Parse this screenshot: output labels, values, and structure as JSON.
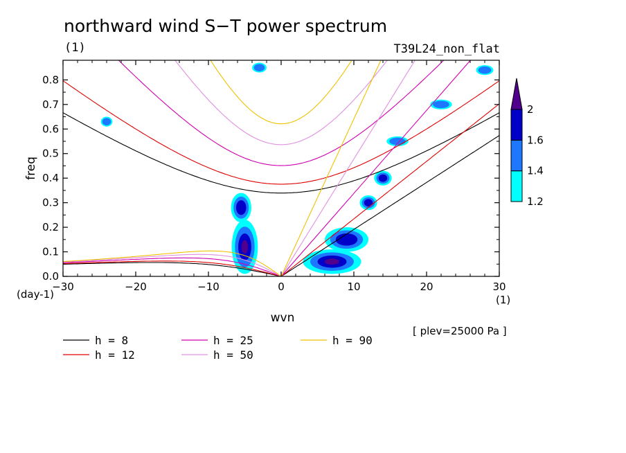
{
  "chart_data": {
    "type": "heatmap",
    "title": "northward wind S−T power spectrum",
    "subtitle_left": "(1)",
    "subtitle_right": "T39L24_non_flat",
    "xlabel": "wvn",
    "ylabel": "freq",
    "x_unit": "(1)",
    "y_unit": "(day-1)",
    "xlim": [
      -30,
      30
    ],
    "ylim": [
      0,
      0.88
    ],
    "x_ticks": [
      -30,
      -20,
      -10,
      0,
      10,
      20,
      30
    ],
    "x_tick_labels": [
      "−30",
      "−20",
      "−10",
      "0",
      "10",
      "20",
      "30"
    ],
    "y_ticks": [
      0,
      0.1,
      0.2,
      0.3,
      0.4,
      0.5,
      0.6,
      0.7,
      0.8
    ],
    "y_tick_labels": [
      "0.0",
      "0.1",
      "0.2",
      "0.3",
      "0.4",
      "0.5",
      "0.6",
      "0.7",
      "0.8"
    ],
    "annotation": "[ plev=25000 Pa ]",
    "colorbar": {
      "levels": [
        1.2,
        1.4,
        1.6,
        2
      ],
      "level_labels": [
        "1.2",
        "1.4",
        "1.6",
        "2"
      ],
      "colors": [
        "#00ffff",
        "#1e78ff",
        "#0000c8",
        "#50008c"
      ]
    },
    "contour_blobs": [
      {
        "x": -5,
        "y": 0.12,
        "level": 3,
        "rx": 1.8,
        "ry": 0.11
      },
      {
        "x": -5.5,
        "y": 0.28,
        "level": 2,
        "rx": 1.4,
        "ry": 0.06
      },
      {
        "x": 7,
        "y": 0.06,
        "level": 3,
        "rx": 4,
        "ry": 0.05
      },
      {
        "x": 9,
        "y": 0.15,
        "level": 2,
        "rx": 3,
        "ry": 0.05
      },
      {
        "x": 12,
        "y": 0.3,
        "level": 2,
        "rx": 1.2,
        "ry": 0.03
      },
      {
        "x": 14,
        "y": 0.4,
        "level": 2,
        "rx": 1.2,
        "ry": 0.03
      },
      {
        "x": 16,
        "y": 0.55,
        "level": 1,
        "rx": 1.5,
        "ry": 0.02
      },
      {
        "x": 22,
        "y": 0.7,
        "level": 1,
        "rx": 1.5,
        "ry": 0.02
      },
      {
        "x": -24,
        "y": 0.63,
        "level": 1,
        "rx": 0.8,
        "ry": 0.02
      },
      {
        "x": -3,
        "y": 0.85,
        "level": 1,
        "rx": 1,
        "ry": 0.02
      },
      {
        "x": 28,
        "y": 0.84,
        "level": 1,
        "rx": 1.2,
        "ry": 0.02
      }
    ],
    "series": [
      {
        "name": "h =  8",
        "equivalent_depth": 8,
        "color": "#000000"
      },
      {
        "name": "h = 12",
        "equivalent_depth": 12,
        "color": "#e00000"
      },
      {
        "name": "h = 25",
        "equivalent_depth": 25,
        "color": "#d000b0"
      },
      {
        "name": "h = 50",
        "equivalent_depth": 50,
        "color": "#e090e0"
      },
      {
        "name": "h = 90",
        "equivalent_depth": 90,
        "color": "#f0c000"
      }
    ]
  }
}
